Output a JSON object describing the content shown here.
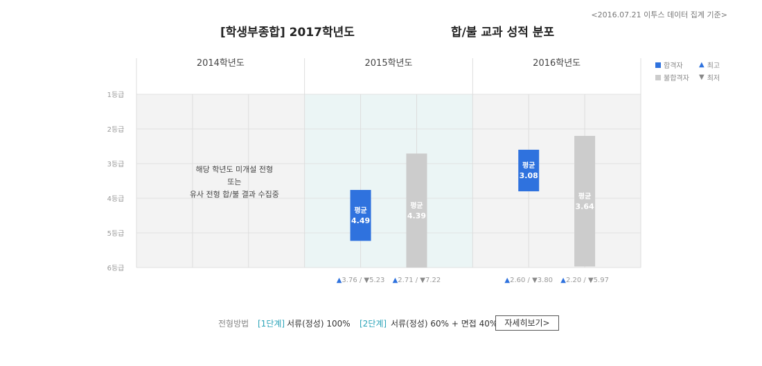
{
  "basis_note": "<2016.07.21 이투스 데이터 집계 기준>",
  "title_left": "[학생부종합] 2017학년도",
  "title_right": "합/불 교과 성적 분포",
  "legend": {
    "pass": "합격자",
    "fail": "불합격자",
    "max": "최고",
    "min": "최저"
  },
  "colors": {
    "pass": "#2f72de",
    "fail": "#cccccc",
    "highlight": "#ebf5f5",
    "grid": "#f3f3f3"
  },
  "chart_data": {
    "type": "range-bar",
    "y_ticks": [
      "1등급",
      "2등급",
      "3등급",
      "4등급",
      "5등급",
      "6등급"
    ],
    "ylim": [
      1,
      6
    ],
    "avg_label": "평균",
    "no_data_lines": [
      "해당 학년도 미개설 전형",
      "또는",
      "유사 전형 합/불 결과 수집중"
    ],
    "years": [
      {
        "label": "2014학년도",
        "series": null
      },
      {
        "label": "2015학년도",
        "series": [
          {
            "name": "합격자",
            "avg": "4.49",
            "max": "3.76",
            "min": "5.23"
          },
          {
            "name": "불합격자",
            "avg": "4.39",
            "max": "2.71",
            "min": "7.22"
          }
        ]
      },
      {
        "label": "2016학년도",
        "series": [
          {
            "name": "합격자",
            "avg": "3.08",
            "max": "2.60",
            "min": "3.80"
          },
          {
            "name": "불합격자",
            "avg": "3.64",
            "max": "2.20",
            "min": "5.97"
          }
        ]
      }
    ]
  },
  "footer": {
    "method_label": "전형방법",
    "stage1_tag": "[1단계]",
    "stage1": "서류(정성) 100%",
    "stage2_tag": "[2단계]",
    "stage2": "서류(정성) 60% + 면접 40%",
    "detail_button": "자세히보기>"
  }
}
